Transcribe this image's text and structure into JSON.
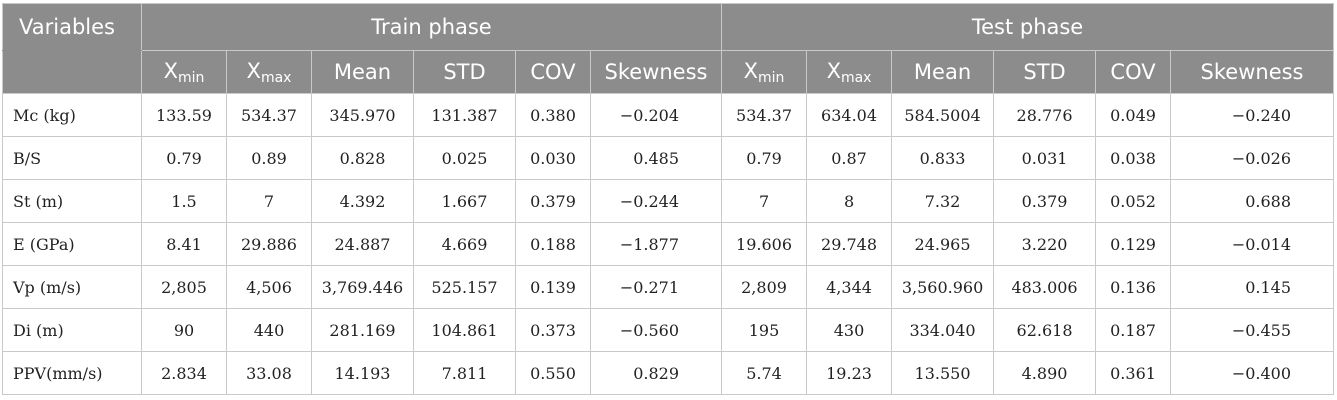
{
  "header": {
    "variables_label": "Variables",
    "train_label": "Train phase",
    "test_label": "Test phase",
    "col_xmin_base": "X",
    "col_xmin_sub": "min",
    "col_xmax_base": "X",
    "col_xmax_sub": "max",
    "col_mean": "Mean",
    "col_std": "STD",
    "col_cov": "COV",
    "col_skewness": "Skewness"
  },
  "rows": [
    {
      "variable": "Mc (kg)",
      "train": [
        "133.59",
        "534.37",
        "345.970",
        "131.387",
        "0.380",
        "−0.204"
      ],
      "test": [
        "534.37",
        "634.04",
        "584.5004",
        "28.776",
        "0.049",
        "−0.240"
      ]
    },
    {
      "variable": "B/S",
      "train": [
        "0.79",
        "0.89",
        "0.828",
        "0.025",
        "0.030",
        "0.485"
      ],
      "test": [
        "0.79",
        "0.87",
        "0.833",
        "0.031",
        "0.038",
        "−0.026"
      ]
    },
    {
      "variable": "St (m)",
      "train": [
        "1.5",
        "7",
        "4.392",
        "1.667",
        "0.379",
        "−0.244"
      ],
      "test": [
        "7",
        "8",
        "7.32",
        "0.379",
        "0.052",
        "0.688"
      ]
    },
    {
      "variable": "E (GPa)",
      "train": [
        "8.41",
        "29.886",
        "24.887",
        "4.669",
        "0.188",
        "−1.877"
      ],
      "test": [
        "19.606",
        "29.748",
        "24.965",
        "3.220",
        "0.129",
        "−0.014"
      ]
    },
    {
      "variable": "Vp (m/s)",
      "train": [
        "2,805",
        "4,506",
        "3,769.446",
        "525.157",
        "0.139",
        "−0.271"
      ],
      "test": [
        "2,809",
        "4,344",
        "3,560.960",
        "483.006",
        "0.136",
        "0.145"
      ]
    },
    {
      "variable": "Di (m)",
      "train": [
        "90",
        "440",
        "281.169",
        "104.861",
        "0.373",
        "−0.560"
      ],
      "test": [
        "195",
        "430",
        "334.040",
        "62.618",
        "0.187",
        "−0.455"
      ]
    },
    {
      "variable": "PPV(mm/s)",
      "train": [
        "2.834",
        "33.08",
        "14.193",
        "7.811",
        "0.550",
        "0.829"
      ],
      "test": [
        "5.74",
        "19.23",
        "13.550",
        "4.890",
        "0.361",
        "−0.400"
      ]
    }
  ]
}
